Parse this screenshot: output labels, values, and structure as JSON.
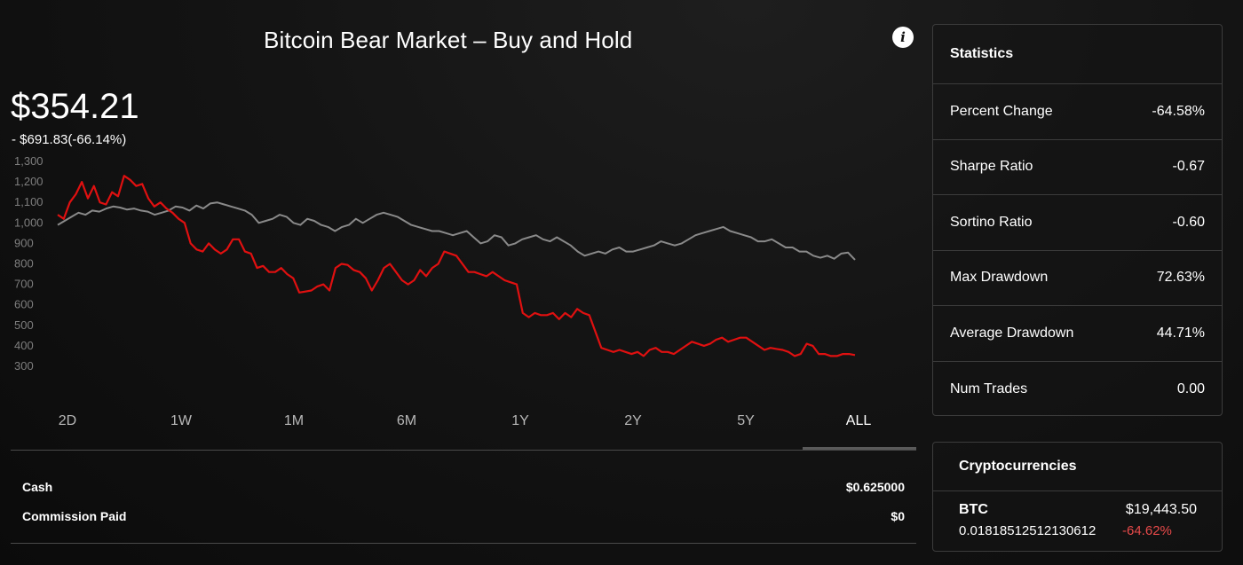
{
  "header": {
    "title": "Bitcoin Bear Market – Buy and Hold",
    "info_icon": "info-icon"
  },
  "summary": {
    "price": "$354.21",
    "change": "- $691.83(-66.14%)"
  },
  "chart_data": {
    "type": "line",
    "y_ticks": [
      "1,300",
      "1,200",
      "1,100",
      "1,000",
      "900",
      "800",
      "700",
      "600",
      "500",
      "400",
      "300"
    ],
    "ylim": [
      300,
      1300
    ],
    "grid": false,
    "series": [
      {
        "color": "#e01010",
        "values": [
          1040,
          1020,
          1100,
          1140,
          1200,
          1120,
          1180,
          1100,
          1090,
          1150,
          1130,
          1230,
          1210,
          1180,
          1190,
          1120,
          1080,
          1100,
          1070,
          1050,
          1020,
          1000,
          900,
          870,
          860,
          900,
          870,
          850,
          870,
          920,
          920,
          860,
          850,
          780,
          790,
          760,
          760,
          780,
          750,
          730,
          660,
          665,
          670,
          690,
          700,
          670,
          780,
          800,
          795,
          770,
          760,
          730,
          670,
          720,
          780,
          800,
          760,
          720,
          700,
          720,
          770,
          740,
          780,
          800,
          860,
          850,
          840,
          800,
          760,
          760,
          750,
          740,
          760,
          740,
          720,
          710,
          700,
          560,
          540,
          560,
          550,
          550,
          560,
          530,
          560,
          540,
          580,
          560,
          550,
          470,
          390,
          380,
          370,
          380,
          370,
          360,
          370,
          350,
          380,
          390,
          370,
          370,
          360,
          380,
          400,
          420,
          410,
          400,
          410,
          430,
          440,
          420,
          430,
          440,
          440,
          420,
          400,
          380,
          390,
          385,
          380,
          370,
          350,
          360,
          410,
          400,
          360,
          360,
          350,
          350,
          360,
          360,
          355
        ]
      },
      {
        "color": "#8a8a8a",
        "values": [
          990,
          1010,
          1030,
          1050,
          1040,
          1060,
          1055,
          1070,
          1080,
          1075,
          1065,
          1070,
          1060,
          1055,
          1040,
          1050,
          1060,
          1080,
          1075,
          1060,
          1085,
          1070,
          1095,
          1100,
          1090,
          1080,
          1070,
          1060,
          1040,
          1000,
          1010,
          1020,
          1040,
          1030,
          1000,
          990,
          1020,
          1010,
          990,
          980,
          960,
          980,
          990,
          1020,
          1000,
          1020,
          1040,
          1050,
          1040,
          1030,
          1010,
          990,
          980,
          970,
          960,
          960,
          950,
          940,
          950,
          960,
          930,
          900,
          910,
          940,
          930,
          890,
          900,
          920,
          930,
          940,
          920,
          910,
          930,
          910,
          890,
          860,
          840,
          850,
          860,
          850,
          870,
          880,
          860,
          860,
          870,
          880,
          890,
          910,
          900,
          890,
          900,
          920,
          940,
          950,
          960,
          970,
          980,
          960,
          950,
          940,
          930,
          910,
          910,
          920,
          900,
          880,
          880,
          860,
          860,
          840,
          830,
          840,
          825,
          850,
          855,
          820
        ]
      }
    ],
    "ranges": [
      "2D",
      "1W",
      "1M",
      "6M",
      "1Y",
      "2Y",
      "5Y",
      "ALL"
    ],
    "active_range": "ALL"
  },
  "account": {
    "cash_label": "Cash",
    "cash_value": "$0.625000",
    "commission_label": "Commission Paid",
    "commission_value": "$0"
  },
  "statistics": {
    "title": "Statistics",
    "rows": [
      {
        "label": "Percent Change",
        "value": "-64.58%"
      },
      {
        "label": "Sharpe Ratio",
        "value": "-0.67"
      },
      {
        "label": "Sortino Ratio",
        "value": "-0.60"
      },
      {
        "label": "Max Drawdown",
        "value": "72.63%"
      },
      {
        "label": "Average Drawdown",
        "value": "44.71%"
      },
      {
        "label": "Num Trades",
        "value": "0.00"
      }
    ]
  },
  "crypto": {
    "title": "Cryptocurrencies",
    "symbol": "BTC",
    "price": "$19,443.50",
    "quantity": "0.01818512512130612",
    "change": "-64.62%",
    "change_color": "#e84a4a"
  }
}
